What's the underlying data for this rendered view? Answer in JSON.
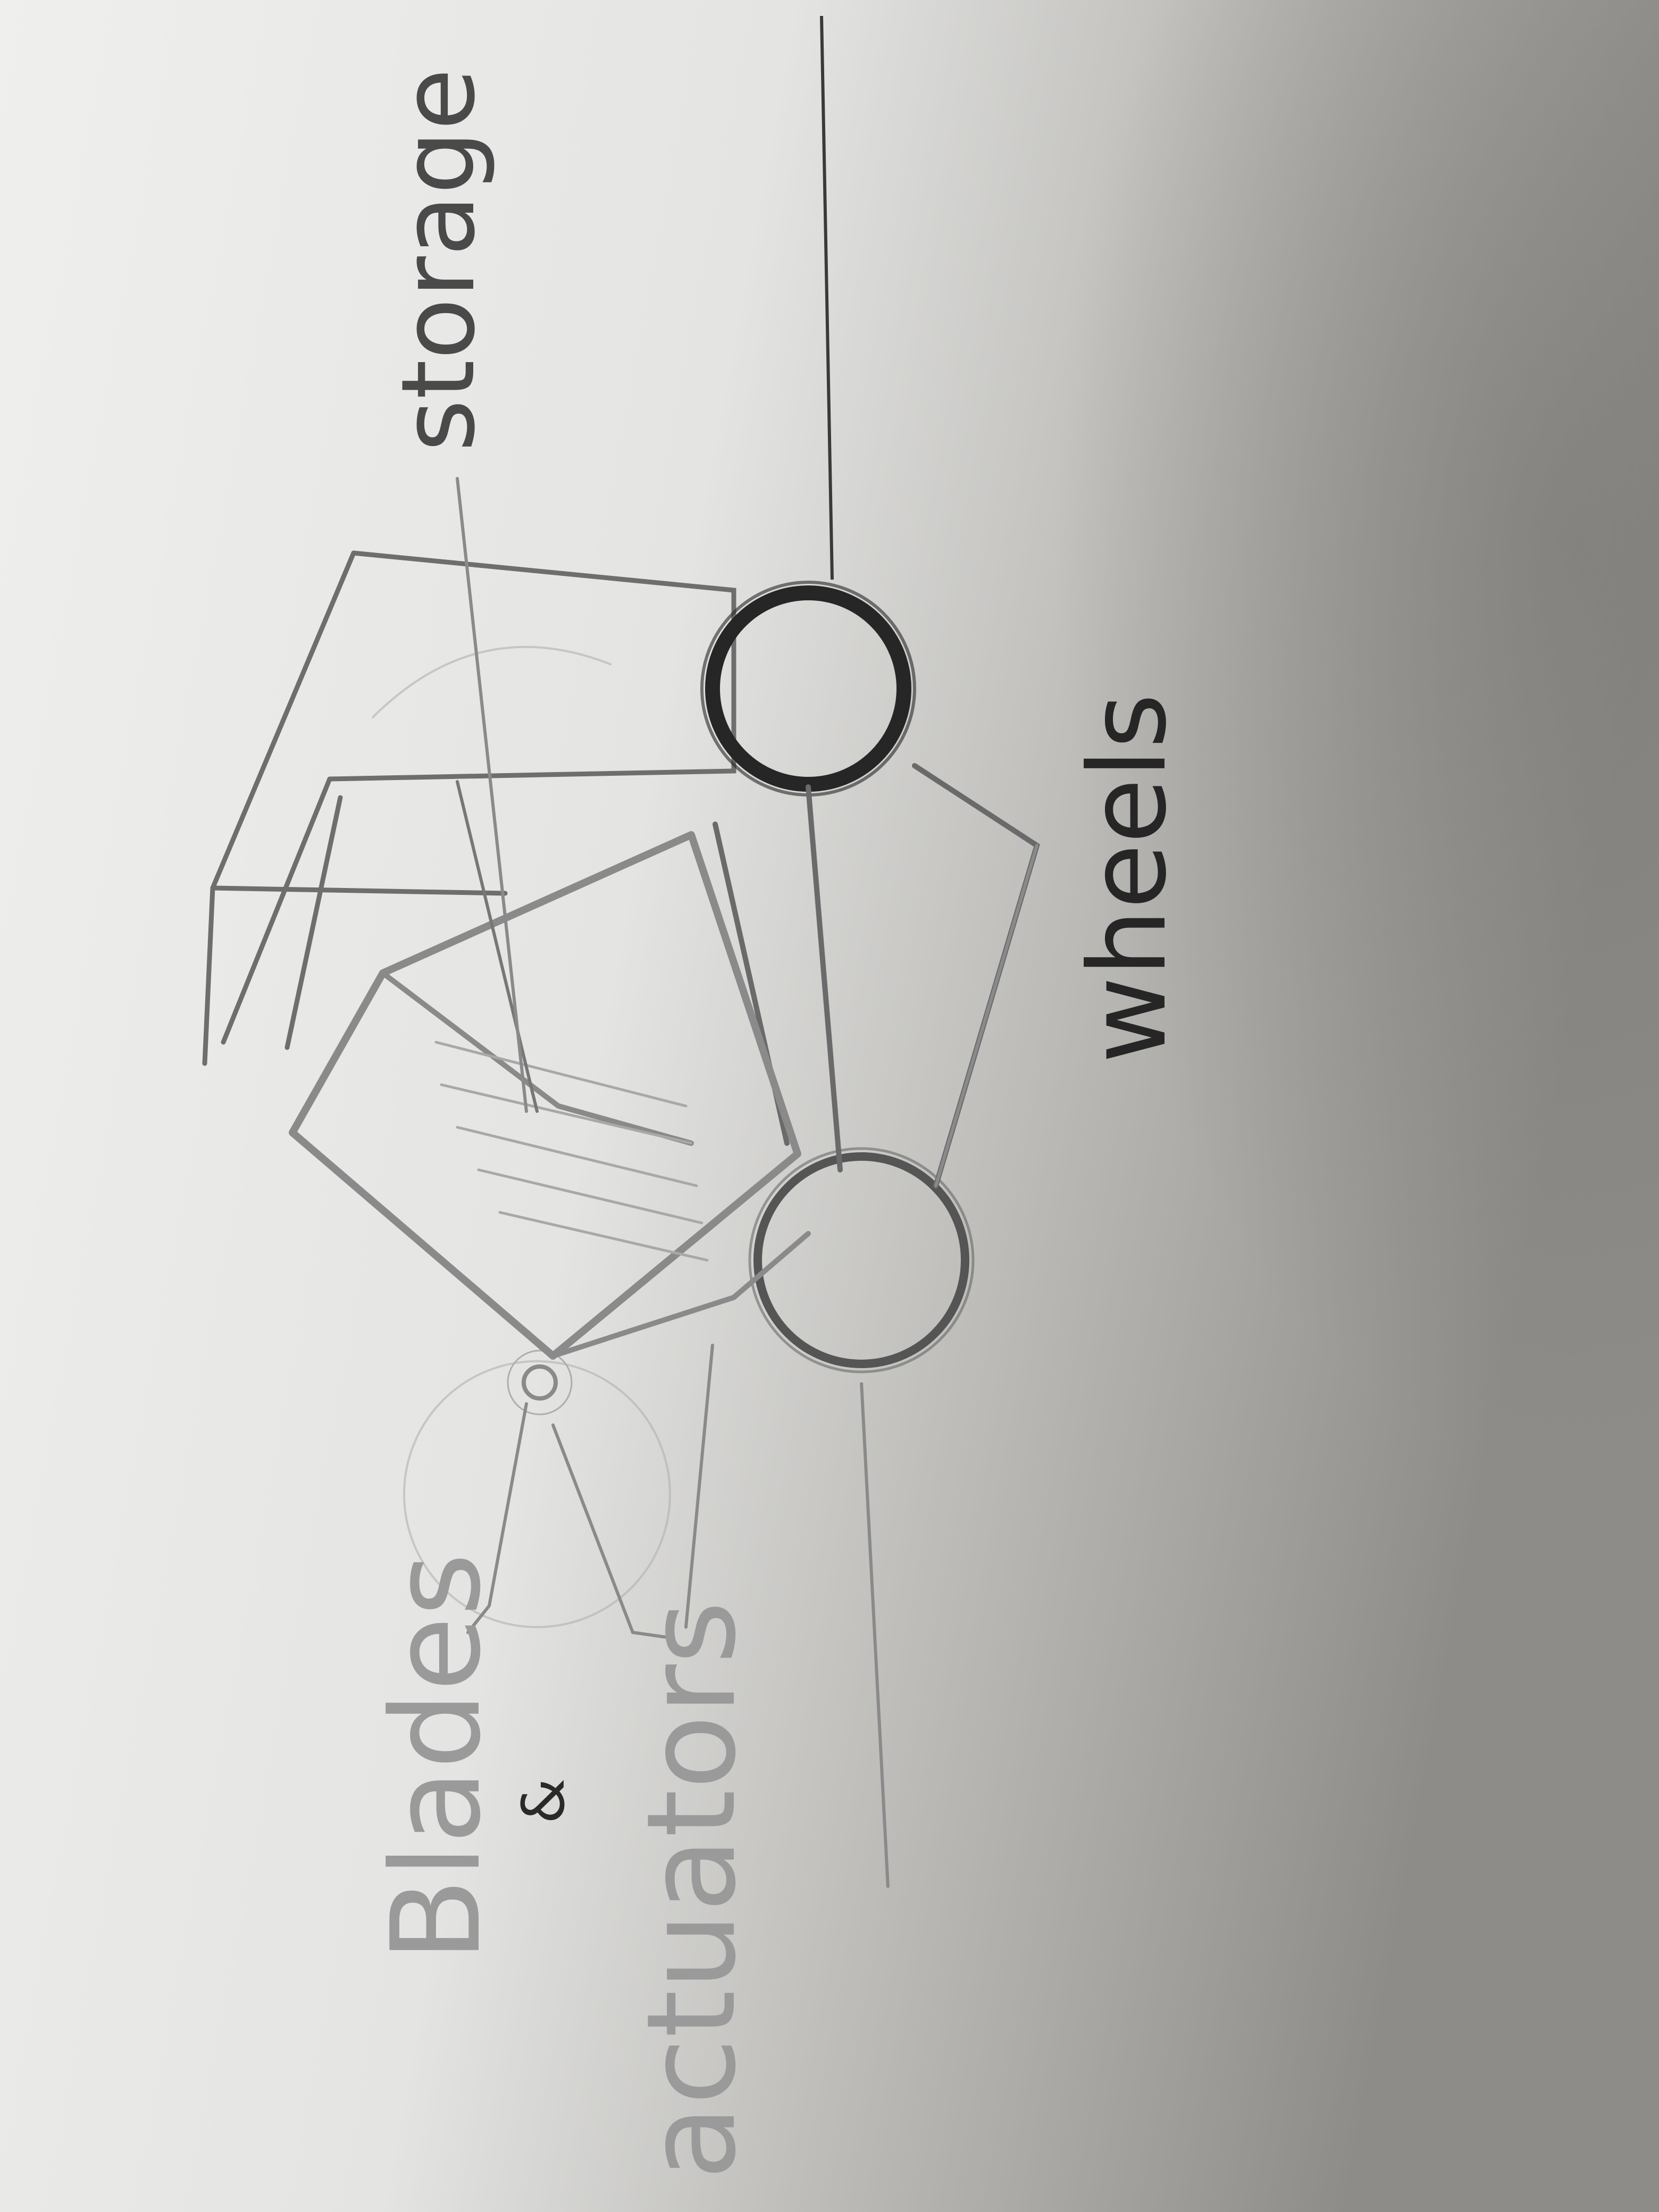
{
  "labels": {
    "storage": "storage",
    "wheels": "wheels",
    "blades": "Blades",
    "ampersand": "&",
    "actuators": "actuators"
  },
  "colors": {
    "paper_light": "#eeeeec",
    "paper_shadow": "#8c8a86",
    "pencil_dark": "#262626",
    "pencil_mid": "#555555",
    "pencil_light": "#9a9a9a"
  }
}
